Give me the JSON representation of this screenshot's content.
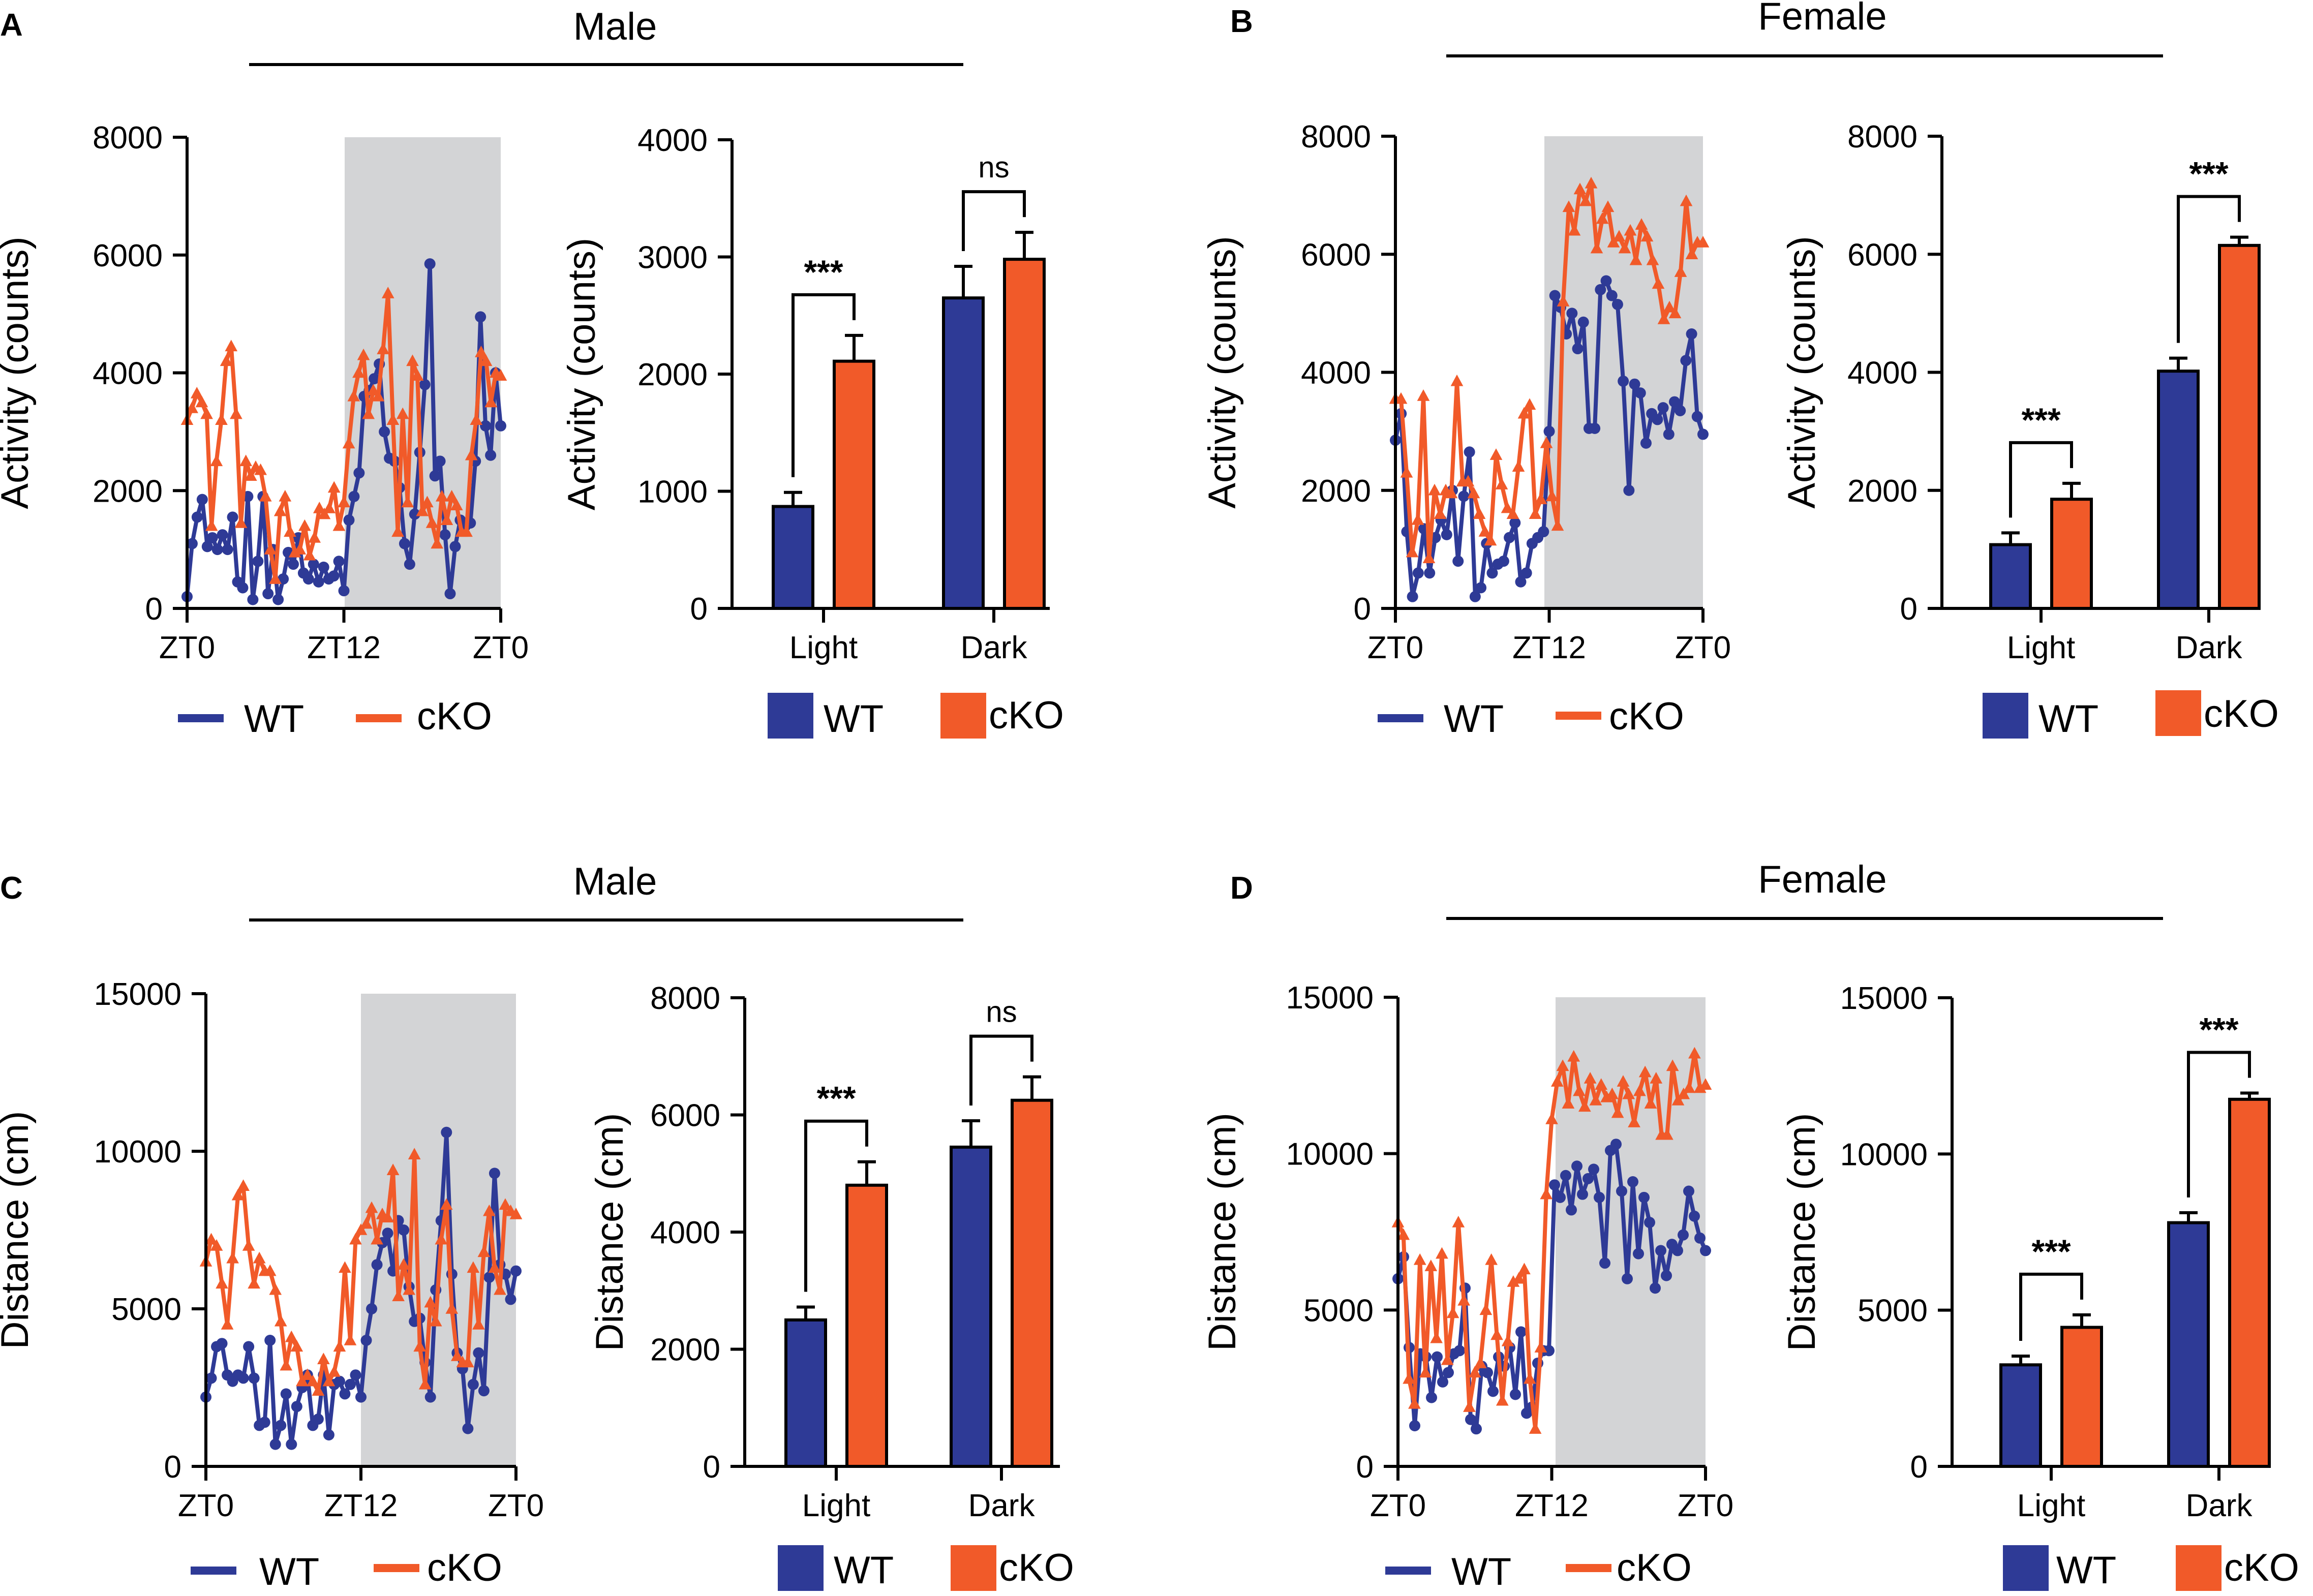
{
  "colors": {
    "wt": "#2e3a96",
    "cko": "#f15a29",
    "dark_phase": "#d3d4d6",
    "axis": "#000000"
  },
  "legend": {
    "wt": "WT",
    "cko": "cKO"
  },
  "significance": {
    "sig": "***",
    "ns": "ns"
  },
  "panels": [
    {
      "letter": "A",
      "title": "Male"
    },
    {
      "letter": "B",
      "title": "Female"
    },
    {
      "letter": "C",
      "title": "Male"
    },
    {
      "letter": "D",
      "title": "Female"
    }
  ],
  "chart_data": [
    {
      "id": "A-line",
      "panel": "A",
      "type": "line",
      "ylabel": "Activity (counts)",
      "ylim": [
        0,
        8000
      ],
      "yticks": [
        "0",
        "2000",
        "4000",
        "6000",
        "8000"
      ],
      "xticks": [
        "ZT0",
        "ZT12",
        "ZT0"
      ],
      "xlim": [
        0,
        24
      ],
      "shaded_range": [
        12,
        24
      ],
      "series": [
        {
          "name": "WT",
          "values": [
            200,
            1100,
            1550,
            1850,
            1050,
            1200,
            1000,
            1250,
            1000,
            1550,
            450,
            350,
            1900,
            150,
            800,
            1900,
            250,
            1000,
            150,
            500,
            950,
            750,
            1200,
            600,
            500,
            750,
            450,
            700,
            500,
            550,
            800,
            300,
            1500,
            1900,
            2300,
            3600,
            3700,
            3900,
            4150,
            3000,
            2550,
            2500,
            2050,
            1100,
            750,
            1600,
            2650,
            3800,
            5850,
            2250,
            2500,
            1250,
            250,
            1050,
            1500,
            1400,
            1450,
            2500,
            4950,
            3100,
            2600,
            4000,
            3100
          ]
        },
        {
          "name": "cKO",
          "values": [
            3200,
            3400,
            3650,
            3500,
            3300,
            1400,
            2500,
            3200,
            4200,
            4450,
            3300,
            1450,
            2500,
            2250,
            2400,
            2350,
            1900,
            1000,
            500,
            1650,
            1900,
            1300,
            950,
            1000,
            1400,
            900,
            1200,
            1700,
            1600,
            1700,
            2050,
            1400,
            1800,
            2800,
            3600,
            4000,
            4300,
            3300,
            3700,
            3600,
            4400,
            5350,
            3200,
            1300,
            3300,
            1800,
            4200,
            3950,
            1650,
            1800,
            1450,
            1100,
            1900,
            1500,
            1900,
            1750,
            1300,
            1300,
            2600,
            3200,
            4350,
            4200,
            3500,
            4000,
            3950
          ]
        }
      ]
    },
    {
      "id": "A-bar",
      "panel": "A",
      "type": "bar",
      "ylabel": "Activity (counts)",
      "ylim": [
        0,
        4000
      ],
      "yticks": [
        "0",
        "1000",
        "2000",
        "3000",
        "4000"
      ],
      "categories": [
        "Light",
        "Dark"
      ],
      "series": [
        {
          "name": "WT",
          "values": [
            870,
            2650
          ],
          "errors": [
            120,
            270
          ]
        },
        {
          "name": "cKO",
          "values": [
            2110,
            2980
          ],
          "errors": [
            220,
            230
          ]
        }
      ],
      "annotations": [
        "***",
        "ns"
      ]
    },
    {
      "id": "B-line",
      "panel": "B",
      "type": "line",
      "ylabel": "Activity (counts)",
      "ylim": [
        0,
        8000
      ],
      "yticks": [
        "0",
        "2000",
        "4000",
        "6000",
        "8000"
      ],
      "xticks": [
        "ZT0",
        "ZT12",
        "ZT0"
      ],
      "xlim": [
        0,
        24
      ],
      "shaded_range": [
        12,
        24
      ],
      "series": [
        {
          "name": "WT",
          "values": [
            2850,
            3300,
            1300,
            200,
            600,
            1350,
            600,
            1200,
            1500,
            1250,
            2000,
            800,
            1900,
            2650,
            200,
            350,
            1100,
            600,
            750,
            800,
            1200,
            1450,
            450,
            600,
            1100,
            1200,
            1300,
            3000,
            5300,
            5100,
            4650,
            5000,
            4400,
            4850,
            3050,
            3050,
            5400,
            5550,
            5300,
            5150,
            3850,
            2000,
            3800,
            3650,
            2800,
            3300,
            3200,
            3400,
            2950,
            3500,
            3350,
            4200,
            4650,
            3250,
            2950
          ]
        },
        {
          "name": "cKO",
          "values": [
            3550,
            3550,
            2300,
            950,
            1500,
            3600,
            850,
            2000,
            1600,
            2000,
            1950,
            3850,
            2150,
            2150,
            1950,
            1600,
            1300,
            1150,
            2600,
            2100,
            1700,
            1600,
            2400,
            3300,
            3450,
            1600,
            1850,
            2800,
            1900,
            1400,
            5200,
            6800,
            6400,
            7100,
            6900,
            7200,
            6100,
            6600,
            6800,
            6200,
            6300,
            6100,
            6400,
            5900,
            6500,
            6300,
            5900,
            5500,
            4900,
            5100,
            5000,
            5700,
            6900,
            6000,
            6200,
            6200
          ]
        }
      ]
    },
    {
      "id": "B-bar",
      "panel": "B",
      "type": "bar",
      "ylabel": "Activity (counts)",
      "ylim": [
        0,
        8000
      ],
      "yticks": [
        "0",
        "2000",
        "4000",
        "6000",
        "8000"
      ],
      "categories": [
        "Light",
        "Dark"
      ],
      "series": [
        {
          "name": "WT",
          "values": [
            1080,
            4020
          ],
          "errors": [
            200,
            220
          ]
        },
        {
          "name": "cKO",
          "values": [
            1850,
            6150
          ],
          "errors": [
            270,
            140
          ]
        }
      ],
      "annotations": [
        "***",
        "***"
      ]
    },
    {
      "id": "C-line",
      "panel": "C",
      "type": "line",
      "ylabel": "Distance (cm)",
      "ylim": [
        0,
        15000
      ],
      "yticks": [
        "0",
        "5000",
        "10000",
        "15000"
      ],
      "xticks": [
        "ZT0",
        "ZT12",
        "ZT0"
      ],
      "xlim": [
        0,
        24
      ],
      "shaded_range": [
        12,
        24
      ],
      "series": [
        {
          "name": "WT",
          "values": [
            2200,
            2800,
            3800,
            3900,
            2900,
            2700,
            2900,
            2800,
            3800,
            2800,
            1300,
            1400,
            4000,
            700,
            1300,
            2300,
            700,
            1900,
            2500,
            2900,
            1300,
            1500,
            2900,
            1000,
            2600,
            2700,
            2300,
            2600,
            2900,
            2200,
            4000,
            5000,
            6400,
            7100,
            7400,
            6200,
            7800,
            7500,
            5700,
            4600,
            4700,
            3300,
            2200,
            5600,
            7800,
            10600,
            6100,
            3600,
            3100,
            1200,
            2600,
            3600,
            2400,
            6000,
            9300,
            6400,
            6100,
            5300,
            6200
          ]
        },
        {
          "name": "cKO",
          "values": [
            6500,
            7200,
            7000,
            5800,
            4500,
            6600,
            8600,
            8900,
            7000,
            5800,
            6600,
            6200,
            6200,
            5600,
            4600,
            3200,
            4100,
            3800,
            2700,
            2900,
            2700,
            2400,
            3400,
            2700,
            3000,
            3800,
            6300,
            4000,
            7200,
            7500,
            7700,
            8200,
            7200,
            8000,
            7900,
            9400,
            5400,
            6400,
            5600,
            9900,
            3800,
            2600,
            5200,
            4600,
            7200,
            8300,
            5000,
            3500,
            3300,
            3300,
            6300,
            4500,
            6800,
            8100,
            6300,
            5600,
            8300,
            8100,
            8000
          ]
        }
      ]
    },
    {
      "id": "C-bar",
      "panel": "C",
      "type": "bar",
      "ylabel": "Distance (cm)",
      "ylim": [
        0,
        8000
      ],
      "yticks": [
        "0",
        "2000",
        "4000",
        "6000",
        "8000"
      ],
      "categories": [
        "Light",
        "Dark"
      ],
      "series": [
        {
          "name": "WT",
          "values": [
            2500,
            5450
          ],
          "errors": [
            220,
            450
          ]
        },
        {
          "name": "cKO",
          "values": [
            4800,
            6250
          ],
          "errors": [
            400,
            400
          ]
        }
      ],
      "annotations": [
        "***",
        "ns"
      ]
    },
    {
      "id": "D-line",
      "panel": "D",
      "type": "line",
      "ylabel": "Distance (cm)",
      "ylim": [
        0,
        15000
      ],
      "yticks": [
        "0",
        "5000",
        "10000",
        "15000"
      ],
      "xticks": [
        "ZT0",
        "ZT12",
        "ZT0"
      ],
      "xlim": [
        0,
        24
      ],
      "shaded_range": [
        12,
        24
      ],
      "series": [
        {
          "name": "WT",
          "values": [
            6000,
            6700,
            3800,
            1300,
            3600,
            3500,
            2200,
            3500,
            2700,
            3000,
            3600,
            3700,
            5700,
            1500,
            1200,
            3200,
            3000,
            2400,
            3500,
            3200,
            3800,
            2300,
            4300,
            1700,
            1900,
            3300,
            3700,
            3700,
            9000,
            8600,
            9300,
            8200,
            9600,
            8700,
            9200,
            9500,
            8600,
            6500,
            10100,
            10300,
            8800,
            6000,
            9100,
            6800,
            8600,
            7800,
            5700,
            6900,
            6100,
            7100,
            6900,
            7400,
            8800,
            8000,
            7300,
            6900
          ]
        },
        {
          "name": "cKO",
          "values": [
            7800,
            7400,
            2800,
            2000,
            6600,
            3000,
            6400,
            4100,
            6800,
            3400,
            4900,
            7800,
            5300,
            1900,
            3000,
            3300,
            5000,
            6600,
            4200,
            2100,
            4000,
            5900,
            6000,
            6300,
            2800,
            1200,
            3800,
            8700,
            11100,
            12300,
            12800,
            11600,
            13100,
            12000,
            11500,
            12400,
            11700,
            12200,
            11800,
            11900,
            11300,
            12300,
            11900,
            11000,
            12000,
            12600,
            11600,
            12400,
            10600,
            10600,
            12800,
            11700,
            11900,
            12100,
            13200,
            12100,
            12200
          ]
        }
      ]
    },
    {
      "id": "D-bar",
      "panel": "D",
      "type": "bar",
      "ylabel": "Distance (cm)",
      "ylim": [
        0,
        15000
      ],
      "yticks": [
        "0",
        "5000",
        "10000",
        "15000"
      ],
      "categories": [
        "Light",
        "Dark"
      ],
      "series": [
        {
          "name": "WT",
          "values": [
            3250,
            7800
          ],
          "errors": [
            280,
            320
          ]
        },
        {
          "name": "cKO",
          "values": [
            4450,
            11750
          ],
          "errors": [
            400,
            200
          ]
        }
      ],
      "annotations": [
        "***",
        "***"
      ]
    }
  ]
}
